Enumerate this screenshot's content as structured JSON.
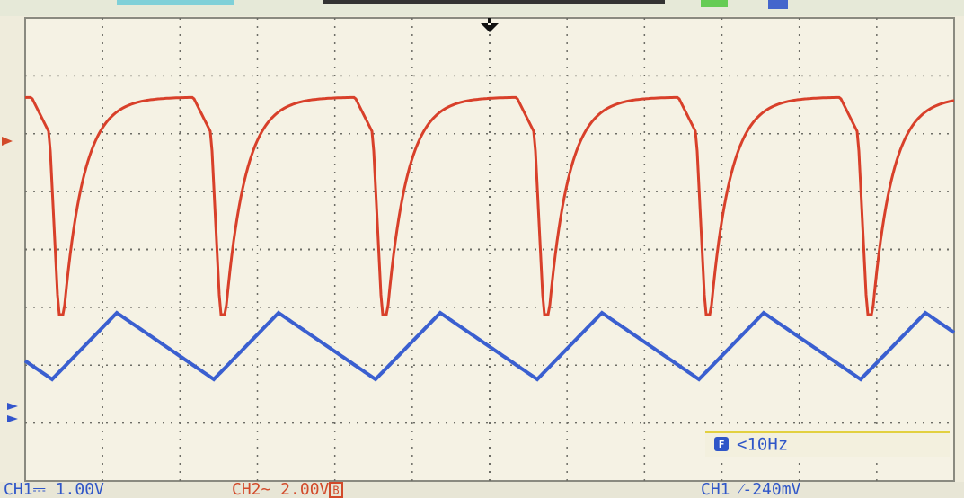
{
  "status_bar": {
    "ch1_scale": "CH1⎓ 1.00V",
    "ch2_scale": "CH2~ 2.00V",
    "ch2_bandwidth": "B",
    "trigger": "CH1 ⁄-240mV"
  },
  "frequency_box": {
    "icon": "F",
    "text": "<10Hz"
  }
}
